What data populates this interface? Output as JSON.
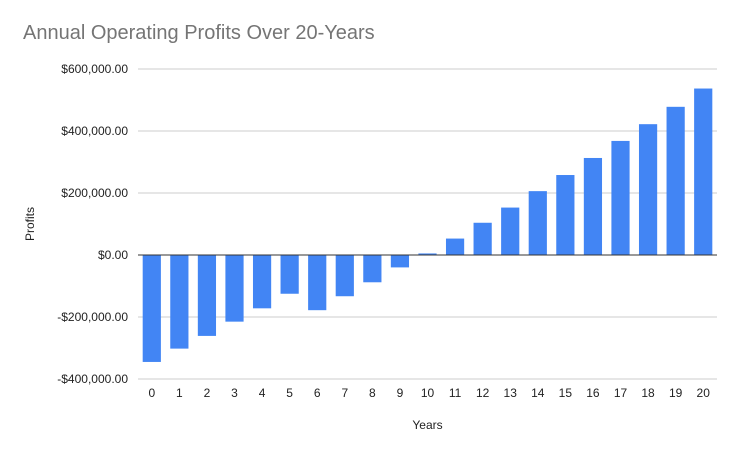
{
  "chart_data": {
    "type": "bar",
    "title": "Annual Operating Profits Over 20-Years",
    "xlabel": "Years",
    "ylabel": "Profits",
    "categories": [
      "0",
      "1",
      "2",
      "3",
      "4",
      "5",
      "6",
      "7",
      "8",
      "9",
      "10",
      "11",
      "12",
      "13",
      "14",
      "15",
      "16",
      "17",
      "18",
      "19",
      "20"
    ],
    "values": [
      -345000,
      -302000,
      -261000,
      -215000,
      -172000,
      -125000,
      -178000,
      -133000,
      -88000,
      -40000,
      5000,
      53000,
      104000,
      153000,
      206000,
      258000,
      313000,
      368000,
      422000,
      478000,
      537000
    ],
    "ylim": [
      -400000,
      600000
    ],
    "yticks": [
      -400000,
      -200000,
      0,
      200000,
      400000,
      600000
    ],
    "ytick_labels": [
      "-$400,000.00",
      "-$200,000.00",
      "$0.00",
      "$200,000.00",
      "$400,000.00",
      "$600,000.00"
    ],
    "bar_color": "#4285f4",
    "grid": true,
    "legend": "none"
  }
}
